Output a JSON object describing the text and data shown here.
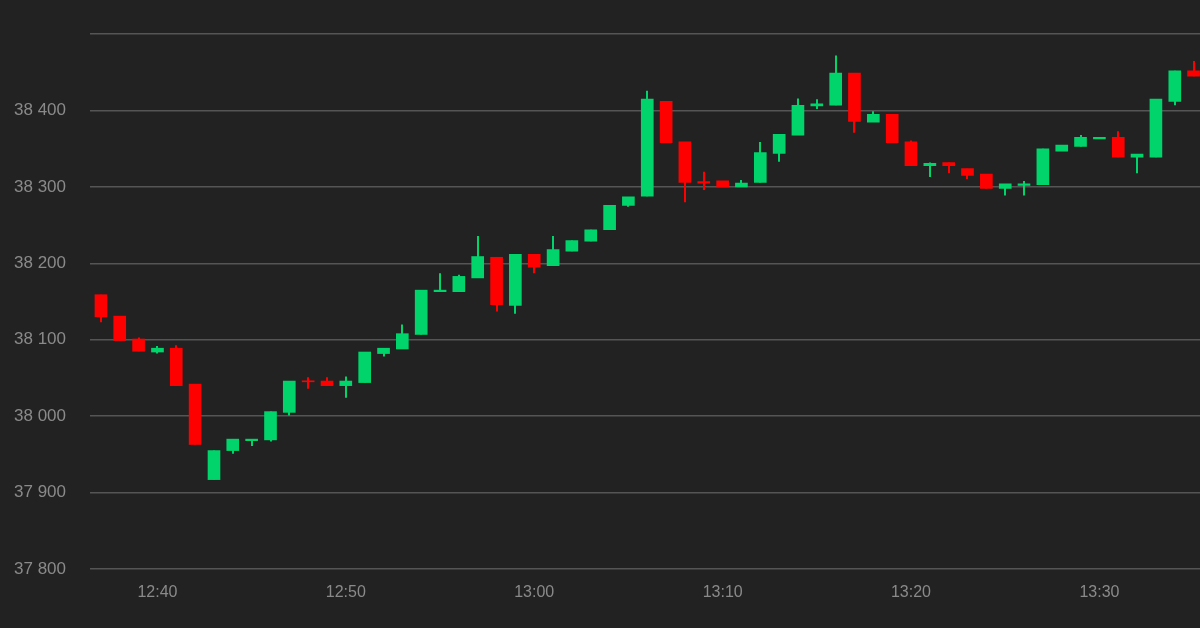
{
  "chart_data": {
    "type": "candlestick",
    "x": [
      12.6167,
      12.6333,
      12.65,
      12.6667,
      12.6833,
      12.7,
      12.7167,
      12.7333,
      12.75,
      12.7667,
      12.7833,
      12.8,
      12.8167,
      12.8333,
      12.85,
      12.8667,
      12.8833,
      12.9,
      12.9167,
      12.9333,
      12.95,
      12.9667,
      12.9833,
      13,
      13.0167,
      13.0333,
      13.05,
      13.0667,
      13.0833,
      13.1,
      13.1167,
      13.1333,
      13.15,
      13.1667,
      13.1833,
      13.2,
      13.2167,
      13.2333,
      13.25,
      13.2667,
      13.2833,
      13.3,
      13.3167,
      13.3333,
      13.35,
      13.3667,
      13.3833,
      13.4,
      13.4167,
      13.4333,
      13.45,
      13.4667,
      13.4833,
      13.5,
      13.5167,
      13.5333,
      13.55,
      13.5667,
      13.5833
    ],
    "ohlc": [
      [
        38159,
        38159,
        38123,
        38130
      ],
      [
        38131,
        38131,
        38099,
        38099
      ],
      [
        38101,
        38103,
        38085,
        38085
      ],
      [
        38084,
        38092,
        38082,
        38089
      ],
      [
        38089,
        38093,
        38040,
        38040
      ],
      [
        38042,
        38042,
        37963,
        37963
      ],
      [
        37917,
        37955,
        37917,
        37955
      ],
      [
        37955,
        37970,
        37951,
        37970
      ],
      [
        37968,
        37970,
        37961,
        37970
      ],
      [
        37969,
        38006,
        37967,
        38006
      ],
      [
        38005,
        38046,
        38001,
        38046
      ],
      [
        38046,
        38051,
        38036,
        38045
      ],
      [
        38046,
        38051,
        38040,
        38040
      ],
      [
        38040,
        38052,
        38024,
        38046
      ],
      [
        38044,
        38084,
        38044,
        38084
      ],
      [
        38082,
        38089,
        38078,
        38089
      ],
      [
        38088,
        38120,
        38088,
        38108
      ],
      [
        38107,
        38165,
        38107,
        38165
      ],
      [
        38163,
        38187,
        38163,
        38165
      ],
      [
        38163,
        38185,
        38163,
        38183
      ],
      [
        38181,
        38236,
        38181,
        38209
      ],
      [
        38208,
        38208,
        38137,
        38146
      ],
      [
        38145,
        38212,
        38134,
        38212
      ],
      [
        38212,
        38212,
        38187,
        38195
      ],
      [
        38197,
        38236,
        38197,
        38218
      ],
      [
        38216,
        38230,
        38216,
        38230
      ],
      [
        38229,
        38244,
        38229,
        38244
      ],
      [
        38244,
        38276,
        38244,
        38276
      ],
      [
        38276,
        38287,
        38274,
        38287
      ],
      [
        38288,
        38426,
        38288,
        38415
      ],
      [
        38412,
        38412,
        38358,
        38358
      ],
      [
        38359,
        38359,
        38280,
        38306
      ],
      [
        38307,
        38320,
        38296,
        38305
      ],
      [
        38308,
        38308,
        38300,
        38300
      ],
      [
        38300,
        38309,
        38300,
        38305
      ],
      [
        38306,
        38359,
        38306,
        38345
      ],
      [
        38344,
        38369,
        38333,
        38369
      ],
      [
        38368,
        38416,
        38368,
        38407
      ],
      [
        38406,
        38415,
        38402,
        38409
      ],
      [
        38407,
        38472,
        38407,
        38449
      ],
      [
        38449,
        38449,
        38371,
        38386
      ],
      [
        38385,
        38399,
        38385,
        38395
      ],
      [
        38395,
        38395,
        38358,
        38358
      ],
      [
        38359,
        38361,
        38328,
        38328
      ],
      [
        38328,
        38332,
        38313,
        38331
      ],
      [
        38332,
        38332,
        38318,
        38328
      ],
      [
        38324,
        38324,
        38310,
        38315
      ],
      [
        38317,
        38317,
        38298,
        38298
      ],
      [
        38298,
        38304,
        38289,
        38304
      ],
      [
        38302,
        38308,
        38289,
        38304
      ],
      [
        38303,
        38350,
        38303,
        38350
      ],
      [
        38347,
        38355,
        38347,
        38355
      ],
      [
        38353,
        38368,
        38353,
        38365
      ],
      [
        38363,
        38365,
        38363,
        38365
      ],
      [
        38365,
        38373,
        38339,
        38339
      ],
      [
        38339,
        38343,
        38318,
        38343
      ],
      [
        38339,
        38415,
        38339,
        38415
      ],
      [
        38412,
        38452,
        38407,
        38452
      ],
      [
        38452,
        38465,
        38445,
        38445
      ]
    ],
    "colors": [
      "#ff0000",
      "#ff0000",
      "#ff0000",
      "#00d46a",
      "#ff0000",
      "#ff0000",
      "#00d46a",
      "#00d46a",
      "#00d46a",
      "#00d46a",
      "#00d46a",
      "#ff0000",
      "#ff0000",
      "#00d46a",
      "#00d46a",
      "#00d46a",
      "#00d46a",
      "#00d46a",
      "#00d46a",
      "#00d46a",
      "#00d46a",
      "#ff0000",
      "#00d46a",
      "#ff0000",
      "#00d46a",
      "#00d46a",
      "#00d46a",
      "#00d46a",
      "#00d46a",
      "#00d46a",
      "#ff0000",
      "#ff0000",
      "#ff0000",
      "#ff0000",
      "#00d46a",
      "#00d46a",
      "#00d46a",
      "#00d46a",
      "#00d46a",
      "#00d46a",
      "#ff0000",
      "#00d46a",
      "#ff0000",
      "#ff0000",
      "#00d46a",
      "#ff0000",
      "#ff0000",
      "#ff0000",
      "#00d46a",
      "#00d46a",
      "#00d46a",
      "#00d46a",
      "#00d46a",
      "#00d46a",
      "#ff0000",
      "#00d46a",
      "#00d46a",
      "#00d46a",
      "#ff0000"
    ],
    "xlim": [
      12.607,
      13.589
    ],
    "xticks": [
      {
        "value": 12.6667,
        "label": "12:40"
      },
      {
        "value": 12.8333,
        "label": "12:50"
      },
      {
        "value": 13,
        "label": "13:00"
      },
      {
        "value": 13.1667,
        "label": "13:10"
      },
      {
        "value": 13.3333,
        "label": "13:20"
      },
      {
        "value": 13.5,
        "label": "13:30"
      }
    ],
    "ylim": [
      37800,
      38500
    ],
    "yticks": [
      {
        "value": 37800,
        "label": "37 800"
      },
      {
        "value": 37900,
        "label": "37 900"
      },
      {
        "value": 38000,
        "label": "38 000"
      },
      {
        "value": 38100,
        "label": "38 100"
      },
      {
        "value": 38200,
        "label": "38 200"
      },
      {
        "value": 38300,
        "label": "38 300"
      },
      {
        "value": 38400,
        "label": "38 400"
      },
      {
        "value": 38500,
        "label": null
      }
    ],
    "grid": "y",
    "legend": false
  }
}
